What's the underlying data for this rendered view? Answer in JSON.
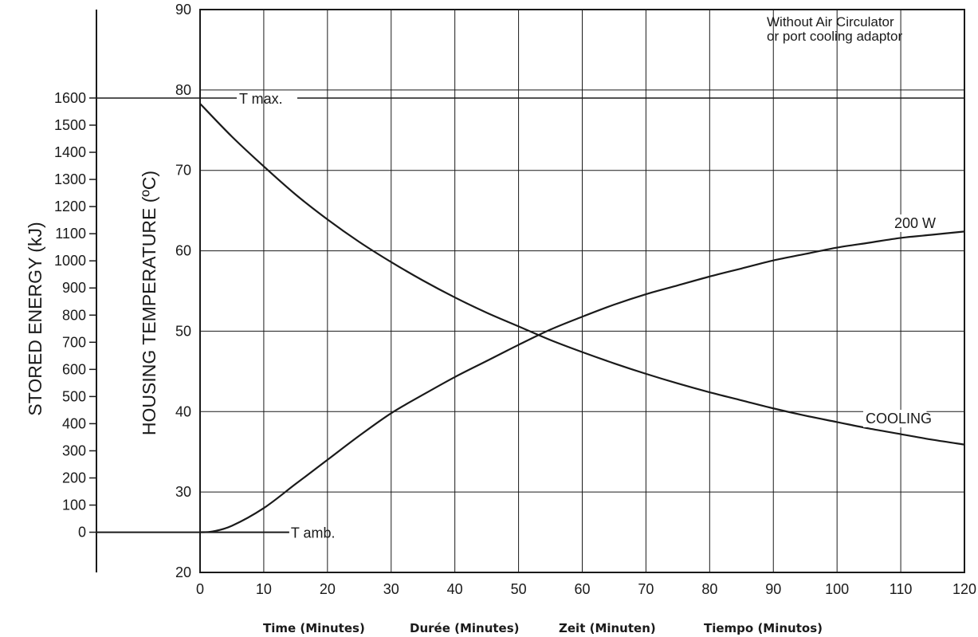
{
  "chart_data": {
    "type": "line",
    "x_ticks": [
      "0",
      "10",
      "20",
      "30",
      "40",
      "50",
      "60",
      "70",
      "80",
      "90",
      "100",
      "110",
      "120"
    ],
    "y_ticks": [
      "20",
      "30",
      "40",
      "50",
      "60",
      "70",
      "80",
      "90"
    ],
    "energy_ticks": [
      "1600",
      "1500",
      "1400",
      "1300",
      "1200",
      "1100",
      "1000",
      "900",
      "800",
      "700",
      "600",
      "500",
      "400",
      "300",
      "200",
      "100",
      "0"
    ],
    "xlim": [
      0,
      120
    ],
    "ylim": [
      20,
      90
    ],
    "energy_range_kJ": [
      0,
      1600
    ],
    "ylabel": "HOUSING TEMPERATURE (ºC)",
    "energy_axis_label": "STORED ENERGY (kJ)",
    "x_titles": [
      "Time  (Minutes)",
      "Durée  (Minutes)",
      "Zeit  (Minuten)",
      "Tiempo (Minutos)"
    ],
    "note_lines": [
      "Without Air Circulator",
      "or port cooling adaptor"
    ],
    "grid": true,
    "series": [
      {
        "name": "200 W",
        "x": [
          0,
          2,
          5,
          10,
          15,
          20,
          25,
          30,
          35,
          40,
          45,
          50,
          55,
          60,
          65,
          70,
          75,
          80,
          85,
          90,
          95,
          100,
          105,
          110,
          115,
          120
        ],
        "y": [
          25.0,
          25.1,
          25.8,
          28.0,
          31.0,
          34.0,
          37.0,
          39.8,
          42.1,
          44.3,
          46.3,
          48.3,
          50.2,
          51.8,
          53.3,
          54.6,
          55.7,
          56.8,
          57.8,
          58.8,
          59.6,
          60.4,
          61.0,
          61.6,
          62.0,
          62.4
        ]
      },
      {
        "name": "COOLING",
        "x": [
          0,
          5,
          10,
          15,
          20,
          25,
          30,
          35,
          40,
          45,
          50,
          55,
          60,
          65,
          70,
          75,
          80,
          85,
          90,
          95,
          100,
          105,
          110,
          115,
          120
        ],
        "y": [
          78.3,
          74.2,
          70.5,
          67.0,
          63.9,
          61.1,
          58.6,
          56.3,
          54.2,
          52.3,
          50.6,
          48.9,
          47.4,
          46.0,
          44.7,
          43.5,
          42.4,
          41.4,
          40.4,
          39.5,
          38.7,
          37.9,
          37.2,
          36.5,
          35.9
        ]
      }
    ],
    "reference_lines": [
      {
        "label": "T max.",
        "y": 79,
        "x_from": 0,
        "x_to": 120
      },
      {
        "label": "T amb.",
        "y": 25,
        "x_from": 0,
        "x_to": 14
      }
    ]
  }
}
